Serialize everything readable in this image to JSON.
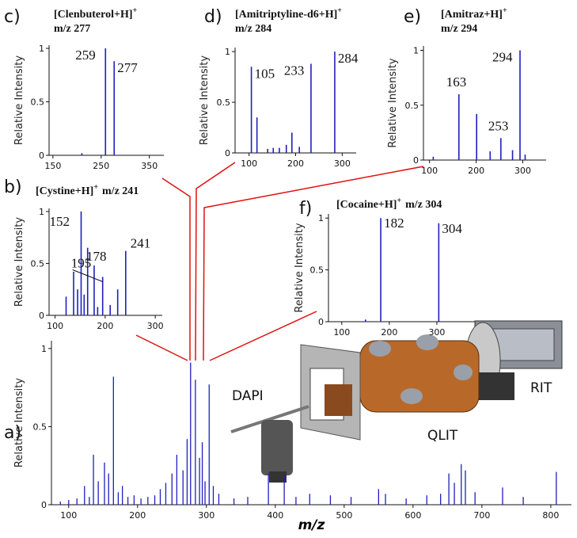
{
  "chart_data": [
    {
      "type": "stem",
      "panel": "a)",
      "y_label": "Relative Intensity",
      "x_label": "m/z",
      "color": "#1f1fbf",
      "xlim": [
        75,
        830
      ],
      "ylim": [
        0,
        1.05
      ],
      "xticks": [
        100,
        200,
        300,
        400,
        500,
        600,
        700,
        800
      ],
      "yticks": [
        0,
        0.5,
        1
      ],
      "x": [
        88,
        100,
        112,
        123,
        130,
        136,
        143,
        152,
        158,
        165,
        172,
        178,
        186,
        195,
        205,
        215,
        225,
        233,
        241,
        250,
        257,
        266,
        272,
        277,
        284,
        290,
        294,
        298,
        304,
        310,
        318,
        340,
        360,
        390,
        413,
        430,
        450,
        480,
        510,
        550,
        560,
        590,
        620,
        640,
        652,
        660,
        670,
        676,
        690,
        730,
        760,
        808
      ],
      "values": [
        0.02,
        0.03,
        0.04,
        0.12,
        0.05,
        0.32,
        0.15,
        0.27,
        0.2,
        0.82,
        0.08,
        0.12,
        0.05,
        0.06,
        0.04,
        0.05,
        0.06,
        0.1,
        0.14,
        0.2,
        0.32,
        0.22,
        0.42,
        0.91,
        0.8,
        0.3,
        0.4,
        0.15,
        0.77,
        0.12,
        0.07,
        0.04,
        0.05,
        0.2,
        0.18,
        0.05,
        0.07,
        0.06,
        0.05,
        0.1,
        0.07,
        0.04,
        0.06,
        0.07,
        0.2,
        0.14,
        0.26,
        0.22,
        0.08,
        0.11,
        0.05,
        0.21
      ]
    },
    {
      "type": "stem",
      "panel": "b)",
      "title": "[Cystine+H]",
      "title_sup": "+",
      "subtitle": "m/z 241",
      "y_label": "Relative Intensity",
      "color": "#1f1fbf",
      "xlim": [
        88,
        314
      ],
      "ylim": [
        0,
        1.03
      ],
      "xticks": [
        100,
        200,
        300
      ],
      "yticks": [
        0,
        0.5,
        1
      ],
      "x": [
        122,
        137,
        145,
        152,
        158,
        165,
        178,
        185,
        195,
        210,
        225,
        241
      ],
      "values": [
        0.18,
        0.42,
        0.25,
        1,
        0.2,
        0.65,
        0.48,
        0.08,
        0.37,
        0.1,
        0.25,
        0.62
      ],
      "annotations": [
        {
          "text": "152",
          "x": 152
        },
        {
          "text": "178",
          "x": 178
        },
        {
          "text": "195",
          "x": 195
        },
        {
          "text": "241",
          "x": 241
        }
      ]
    },
    {
      "type": "stem",
      "panel": "c)",
      "title": "[Clenbuterol+H]",
      "title_sup": "+",
      "subtitle": "m/z 277",
      "y_label": "Relative Intensity",
      "color": "#1f1fbf",
      "xlim": [
        142,
        380
      ],
      "ylim": [
        0,
        1.03
      ],
      "xticks": [
        150,
        250,
        350
      ],
      "yticks": [
        0,
        0.5,
        1
      ],
      "x": [
        210,
        259,
        277
      ],
      "values": [
        0.02,
        1,
        0.88
      ],
      "annotations": [
        {
          "text": "259",
          "x": 259
        },
        {
          "text": "277",
          "x": 277
        }
      ]
    },
    {
      "type": "stem",
      "panel": "d)",
      "title": "[Amitriptyline-d6+H]",
      "title_sup": "+",
      "subtitle": "m/z 284",
      "y_label": "Relative Intensity",
      "color": "#1f1fbf",
      "xlim": [
        70,
        330
      ],
      "ylim": [
        0,
        1.04
      ],
      "xticks": [
        100,
        200,
        300
      ],
      "yticks": [
        0,
        0.5,
        1
      ],
      "x": [
        105,
        117,
        140,
        152,
        165,
        180,
        192,
        208,
        233,
        284
      ],
      "values": [
        0.85,
        0.35,
        0.04,
        0.05,
        0.05,
        0.08,
        0.2,
        0.06,
        0.88,
        1
      ],
      "annotations": [
        {
          "text": "105",
          "x": 105
        },
        {
          "text": "233",
          "x": 233
        },
        {
          "text": "284",
          "x": 284
        }
      ]
    },
    {
      "type": "stem",
      "panel": "e)",
      "title": "[Amitraz+H]",
      "title_sup": "+",
      "subtitle": "m/z 294",
      "y_label": "Relative Intensity",
      "color": "#1f1fbf",
      "xlim": [
        87,
        350
      ],
      "ylim": [
        0,
        1.04
      ],
      "xticks": [
        100,
        200,
        300
      ],
      "yticks": [
        0,
        0.5,
        1
      ],
      "x": [
        108,
        163,
        201,
        230,
        253,
        278,
        294,
        305
      ],
      "values": [
        0.03,
        0.6,
        0.42,
        0.08,
        0.2,
        0.09,
        1,
        0.05
      ],
      "annotations": [
        {
          "text": "163",
          "x": 163
        },
        {
          "text": "253",
          "x": 253
        },
        {
          "text": "294",
          "x": 294
        }
      ]
    },
    {
      "type": "stem",
      "panel": "f)",
      "title": "[Cocaine+H]",
      "title_sup": "+",
      "subtitle": "m/z 304",
      "y_label": "Relative Intensity",
      "color": "#1f1fbf",
      "xlim": [
        72,
        380
      ],
      "ylim": [
        0,
        1.04
      ],
      "xticks": [
        100,
        200,
        300
      ],
      "yticks": [
        0,
        0.5,
        1
      ],
      "x": [
        150,
        182,
        304
      ],
      "values": [
        0.02,
        1,
        0.95
      ],
      "annotations": [
        {
          "text": "182",
          "x": 182
        },
        {
          "text": "304",
          "x": 304
        }
      ]
    }
  ],
  "instrument": {
    "labels": [
      "DAPI",
      "QLIT",
      "RIT"
    ]
  }
}
